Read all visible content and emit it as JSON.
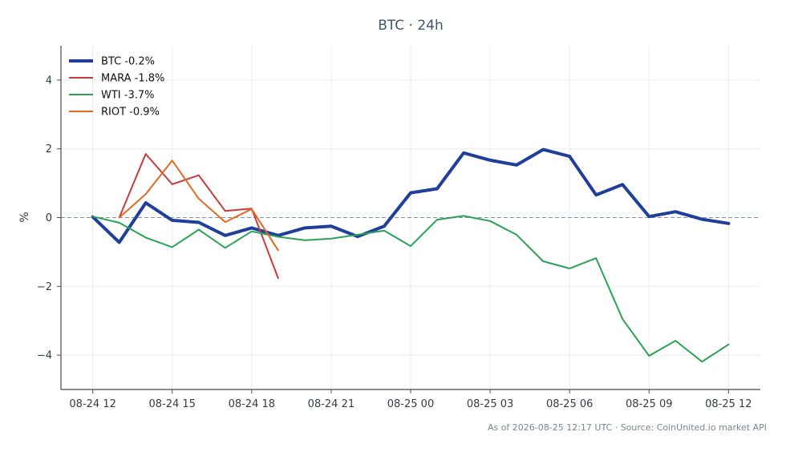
{
  "chart_data": {
    "type": "line",
    "title": "BTC · 24h",
    "xlabel": "",
    "ylabel": "%",
    "ylim": [
      -5,
      5
    ],
    "yticks": [
      4,
      2,
      0,
      -2,
      -4
    ],
    "ytick_labels": [
      "4",
      "2",
      "0",
      "−2",
      "−4"
    ],
    "x_ticks": [
      "08-24 12",
      "08-24 15",
      "08-24 18",
      "08-24 21",
      "08-25 00",
      "08-25 03",
      "08-25 06",
      "08-25 09",
      "08-25 12"
    ],
    "x_tick_hours": [
      0,
      3,
      6,
      9,
      12,
      15,
      18,
      21,
      24
    ],
    "xlim_hours": [
      -1.2,
      25.2
    ],
    "zero_line": true,
    "grid": true,
    "legend_position": "top-left",
    "series": [
      {
        "name": "BTC -0.2%",
        "color": "#1f3f9b",
        "width": 4,
        "x_hours": [
          0,
          1,
          2,
          3,
          4,
          5,
          6,
          7,
          8,
          9,
          10,
          11,
          12,
          13,
          14,
          15,
          16,
          17,
          18,
          19,
          20,
          21,
          22,
          23,
          24
        ],
        "values": [
          0.02,
          -0.72,
          0.43,
          -0.08,
          -0.14,
          -0.52,
          -0.3,
          -0.52,
          -0.3,
          -0.25,
          -0.55,
          -0.25,
          0.72,
          0.84,
          1.88,
          1.67,
          1.53,
          1.98,
          1.78,
          0.66,
          0.96,
          0.03,
          0.17,
          -0.05,
          -0.17
        ]
      },
      {
        "name": "MARA -1.8%",
        "color": "#c8393b",
        "width": 2,
        "x_hours": [
          1,
          2,
          3,
          4,
          5,
          6,
          7
        ],
        "values": [
          0.0,
          1.85,
          0.97,
          1.23,
          0.19,
          0.26,
          -1.76
        ]
      },
      {
        "name": "WTI -3.7%",
        "color": "#2aa254",
        "width": 2,
        "x_hours": [
          0,
          1,
          2,
          3,
          4,
          5,
          6,
          7,
          8,
          9,
          10,
          11,
          12,
          13,
          14,
          15,
          16,
          17,
          18,
          19,
          20,
          21,
          22,
          23,
          24
        ],
        "values": [
          0.03,
          -0.15,
          -0.58,
          -0.86,
          -0.35,
          -0.88,
          -0.4,
          -0.56,
          -0.66,
          -0.61,
          -0.5,
          -0.38,
          -0.83,
          -0.06,
          0.05,
          -0.1,
          -0.5,
          -1.27,
          -1.48,
          -1.18,
          -2.95,
          -4.02,
          -3.58,
          -4.19,
          -3.69
        ]
      },
      {
        "name": "RIOT -0.9%",
        "color": "#e06a21",
        "width": 2,
        "x_hours": [
          1,
          2,
          3,
          4,
          5,
          6,
          7
        ],
        "values": [
          0.0,
          0.68,
          1.66,
          0.55,
          -0.13,
          0.25,
          -0.95
        ]
      }
    ],
    "footer": "As of 2026-08-25 12:17 UTC · Source: CoinUnited.io market API"
  }
}
